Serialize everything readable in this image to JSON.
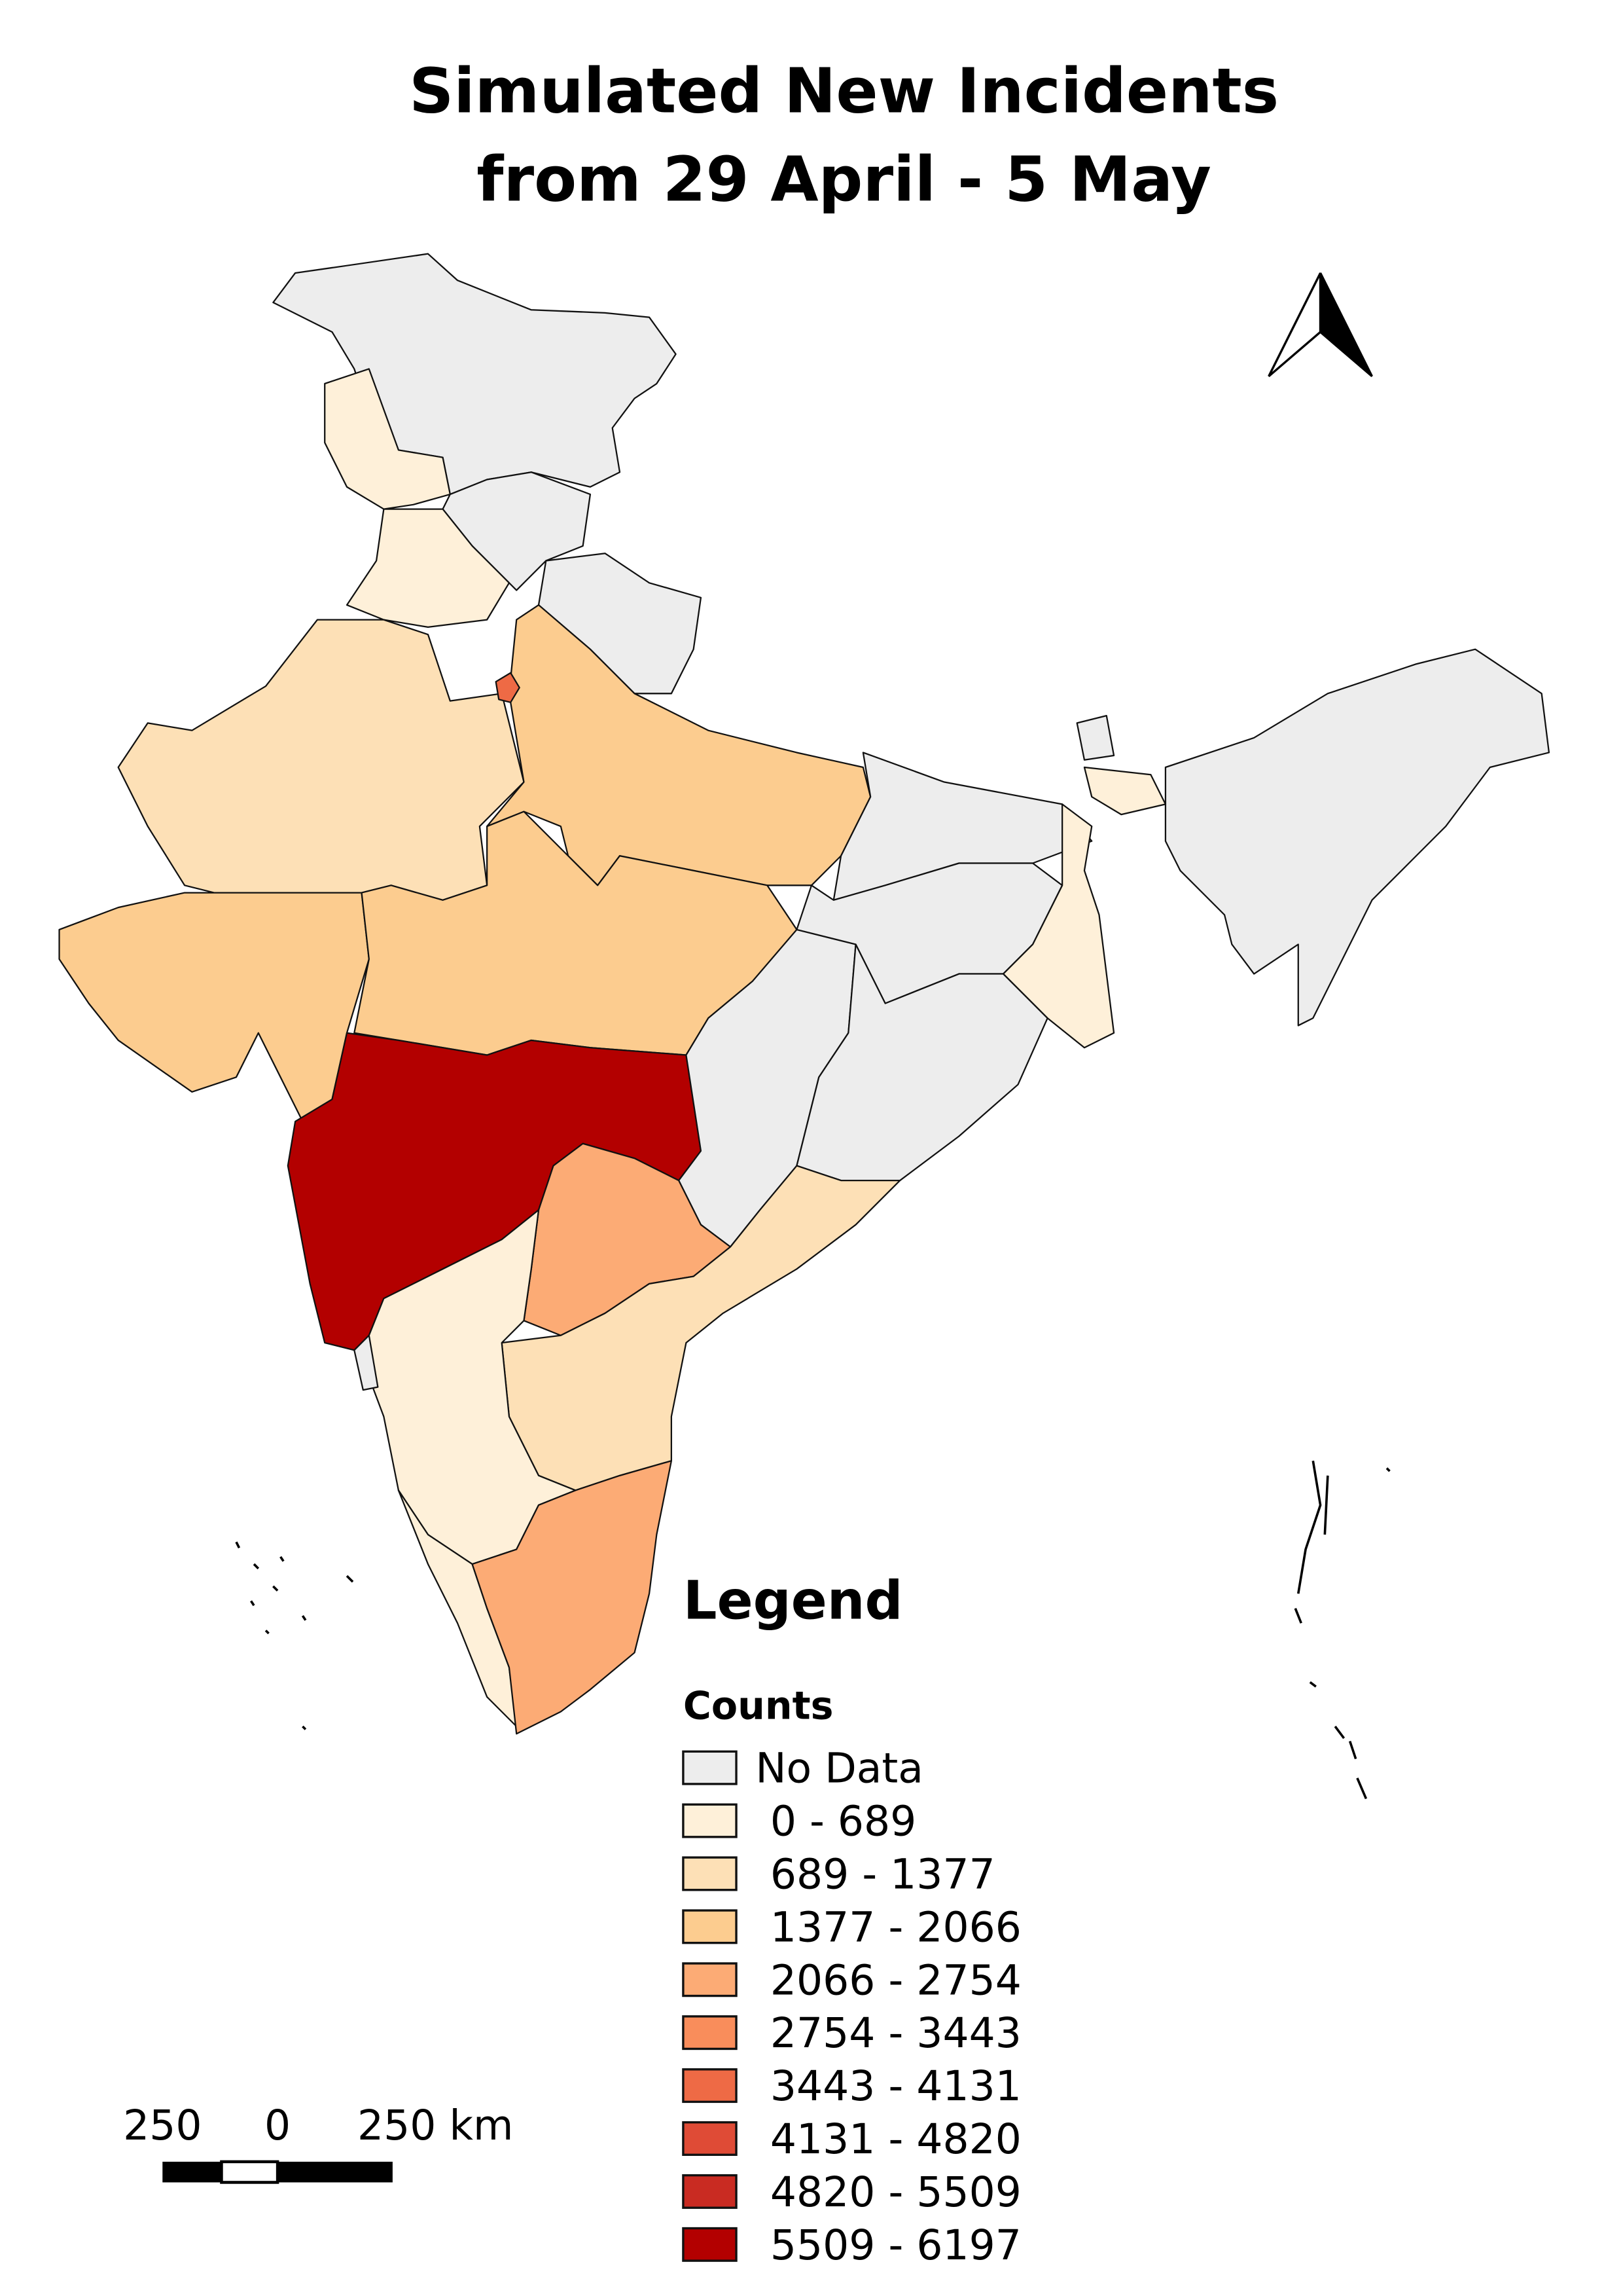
{
  "title": [
    "Simulated New Incidents",
    "from 29 April - 5 May"
  ],
  "legend": {
    "title": "Legend",
    "subtitle": "Counts",
    "items": [
      {
        "label": "No Data",
        "color": "#ededed"
      },
      {
        "label": "0 - 689",
        "color": "#fef0d9"
      },
      {
        "label": "689 - 1377",
        "color": "#fde0b6"
      },
      {
        "label": "1377 - 2066",
        "color": "#fccc8f"
      },
      {
        "label": "2066 - 2754",
        "color": "#fcab75"
      },
      {
        "label": "2754 - 3443",
        "color": "#f98d5b"
      },
      {
        "label": "3443 - 4131",
        "color": "#ee6a45"
      },
      {
        "label": "4131 - 4820",
        "color": "#df4b36"
      },
      {
        "label": "4820 - 5509",
        "color": "#c92b22"
      },
      {
        "label": "5509 - 6197",
        "color": "#b30000"
      }
    ]
  },
  "scale_bar": {
    "labels": [
      "250",
      "0",
      "250 km"
    ]
  }
}
